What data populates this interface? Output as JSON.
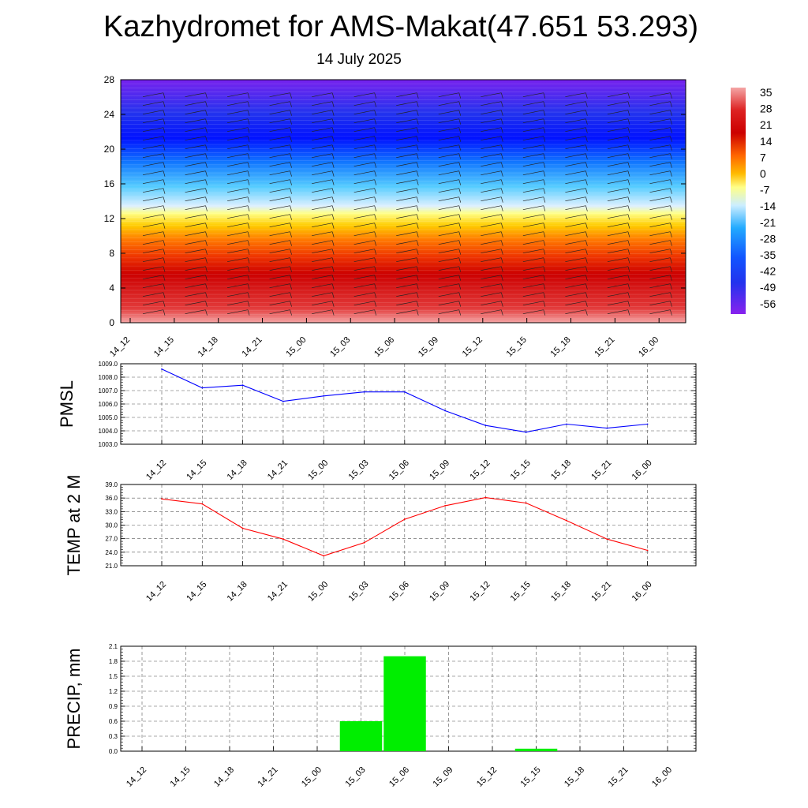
{
  "header": {
    "title": "Kazhydromet for AMS-Makat(47.651 53.293)",
    "subtitle": "14 July 2025"
  },
  "colors": {
    "pmsl_line": "#0000ff",
    "temp_line": "#ff0000",
    "precip_bar": "#00ee00",
    "grid": "#555555"
  },
  "chart_data": [
    {
      "id": "profile",
      "type": "heatmap",
      "x": [
        "14_12",
        "14_15",
        "14_18",
        "14_21",
        "15_00",
        "15_03",
        "15_06",
        "15_09",
        "15_12",
        "15_15",
        "15_18",
        "15_21",
        "16_00"
      ],
      "y_ticks": [
        0,
        4,
        8,
        12,
        16,
        20,
        24,
        28
      ],
      "ylim": [
        0,
        28
      ],
      "colorbar_labels": [
        "35",
        "28",
        "21",
        "14",
        "7",
        "0",
        "-7",
        "-14",
        "-21",
        "-28",
        "-35",
        "-42",
        "-49",
        "-56"
      ],
      "grid": false
    },
    {
      "id": "pmsl",
      "type": "line",
      "ylabel": "PMSL",
      "x": [
        "14_12",
        "14_15",
        "14_18",
        "14_21",
        "15_00",
        "15_03",
        "15_06",
        "15_09",
        "15_12",
        "15_15",
        "15_18",
        "15_21",
        "16_00"
      ],
      "values": [
        1008.6,
        1007.2,
        1007.4,
        1006.2,
        1006.6,
        1006.9,
        1006.9,
        1005.5,
        1004.4,
        1003.9,
        1004.5,
        1004.2,
        1004.5
      ],
      "y_ticks": [
        "1003.0",
        "1004.0",
        "1005.0",
        "1006.0",
        "1007.0",
        "1008.0",
        "1009.0"
      ],
      "ylim": [
        1003,
        1009
      ],
      "grid": true
    },
    {
      "id": "temp",
      "type": "line",
      "ylabel": "TEMP at 2 M",
      "x": [
        "14_12",
        "14_15",
        "14_18",
        "14_21",
        "15_00",
        "15_03",
        "15_06",
        "15_09",
        "15_12",
        "15_15",
        "15_18",
        "15_21",
        "16_00"
      ],
      "values": [
        35.8,
        34.7,
        29.3,
        26.9,
        23.2,
        26.1,
        31.3,
        34.3,
        36.1,
        34.9,
        31.0,
        26.9,
        24.4
      ],
      "y_ticks": [
        "21.0",
        "24.0",
        "27.0",
        "30.0",
        "33.0",
        "36.0",
        "39.0"
      ],
      "ylim": [
        21,
        39
      ],
      "grid": true
    },
    {
      "id": "precip",
      "type": "bar",
      "ylabel": "PRECIP, mm",
      "x": [
        "14_12",
        "14_15",
        "14_18",
        "14_21",
        "15_00",
        "15_03",
        "15_06",
        "15_09",
        "15_12",
        "15_15",
        "15_18",
        "15_21",
        "16_00"
      ],
      "values": [
        0,
        0,
        0,
        0,
        0,
        0.6,
        1.9,
        0,
        0,
        0.05,
        0,
        0,
        0
      ],
      "y_ticks": [
        "0.0",
        "0.3",
        "0.6",
        "0.9",
        "1.2",
        "1.5",
        "1.8",
        "2.1"
      ],
      "ylim": [
        0,
        2.1
      ],
      "grid": true
    }
  ]
}
